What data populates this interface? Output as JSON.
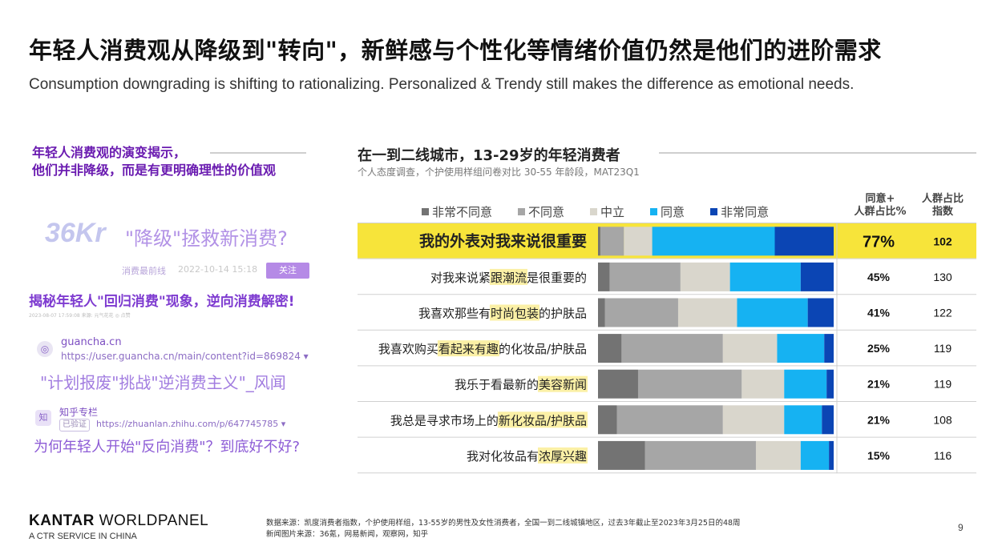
{
  "header": {
    "title": "年轻人消费观从降级到\"转向\"，新鲜感与个性化等情绪价值仍然是他们的进阶需求",
    "subtitle": "Consumption downgrading is shifting to rationalizing. Personalized & Trendy still makes the difference as emotional needs."
  },
  "left": {
    "insight_line1": "年轻人消费观的演变揭示，",
    "insight_line2": "他们并非降级，而是有更明确理性的价值观",
    "kr_logo": "36Kr",
    "kr_headline": "\"降级\"拯救新消费?",
    "kr_source": "消费最前线",
    "kr_time": "2022-10-14 15:18",
    "kr_follow": "关注",
    "headline_1": "揭秘年轻人\"回归消费\"现象，逆向消费解密!",
    "headline_1_meta": "2023-08-07 17:59:08   来源: 元气花花   ◎ 点赞",
    "gc_icon": "◎",
    "gc_site": "guancha.cn",
    "gc_url": "https://user.guancha.cn/main/content?id=869824 ▾",
    "headline_2": "\"计划报废\"挑战\"逆消费主义\"_风闻",
    "zh_icon": "知",
    "zh_site": "知乎专栏",
    "zh_verified": "已验证",
    "zh_url": "https://zhuanlan.zhihu.com/p/647745785 ▾",
    "headline_3": "为何年轻人开始\"反向消费\"？到底好不好?"
  },
  "chart_header": {
    "title": "在一到二线城市，13-29岁的年轻消费者",
    "subtitle": "个人态度调查，个护使用样组问卷对比 30-55 年龄段，MAT23Q1",
    "col1": "同意+人群占比%",
    "col1_line1": "同意+",
    "col1_line2": "人群占比%",
    "col2_line1": "人群占比",
    "col2_line2": "指数"
  },
  "legend": [
    {
      "label": "非常不同意",
      "color": "#737373"
    },
    {
      "label": "不同意",
      "color": "#a6a6a6"
    },
    {
      "label": "中立",
      "color": "#d9d6cc"
    },
    {
      "label": "同意",
      "color": "#16b2f2"
    },
    {
      "label": "非常同意",
      "color": "#0b45b4"
    }
  ],
  "chart_data": {
    "type": "bar",
    "stacked": true,
    "orientation": "horizontal",
    "title": "在一到二线城市，13-29岁的年轻消费者",
    "categories": [
      {
        "pre": "",
        "hl": "",
        "post": "我的外表对我来说很重要",
        "full": "我的外表对我来说很重要"
      },
      {
        "pre": "对我来说紧",
        "hl": "跟潮流",
        "post": "是很重要的",
        "full": "对我来说紧跟潮流是很重要的"
      },
      {
        "pre": "我喜欢那些有",
        "hl": "时尚包装",
        "post": "的护肤品",
        "full": "我喜欢那些有时尚包装的护肤品"
      },
      {
        "pre": "我喜欢购买",
        "hl": "看起来有趣",
        "post": "的化妆品/护肤品",
        "full": "我喜欢购买看起来有趣的化妆品/护肤品"
      },
      {
        "pre": "我乐于看最新的",
        "hl": "美容新闻",
        "post": "",
        "full": "我乐于看最新的美容新闻"
      },
      {
        "pre": "我总是寻求市场上的",
        "hl": "新化妆品/护肤品",
        "post": "",
        "full": "我总是寻求市场上的新化妆品/护肤品"
      },
      {
        "pre": "我对化妆品有",
        "hl": "浓厚兴趣",
        "post": "",
        "full": "我对化妆品有浓厚兴趣"
      }
    ],
    "series": [
      {
        "name": "非常不同意",
        "color": "#737373",
        "values": [
          1,
          5,
          3,
          10,
          17,
          8,
          20
        ]
      },
      {
        "name": "不同意",
        "color": "#a6a6a6",
        "values": [
          10,
          30,
          31,
          43,
          44,
          45,
          47
        ]
      },
      {
        "name": "中立",
        "color": "#d9d6cc",
        "values": [
          12,
          21,
          25,
          23,
          18,
          26,
          19
        ]
      },
      {
        "name": "同意",
        "color": "#16b2f2",
        "values": [
          52,
          30,
          30,
          20,
          18,
          16,
          12
        ]
      },
      {
        "name": "非常同意",
        "color": "#0b45b4",
        "values": [
          25,
          14,
          11,
          4,
          3,
          5,
          2
        ]
      }
    ],
    "agree_plus_pct": [
      "77%",
      "45%",
      "41%",
      "25%",
      "21%",
      "21%",
      "15%"
    ],
    "index": [
      "102",
      "130",
      "122",
      "119",
      "119",
      "108",
      "116"
    ],
    "highlight_row": 0,
    "xlim": [
      0,
      100
    ]
  },
  "footer": {
    "logo_bold": "KANTAR",
    "logo_rest": " WORLDPANEL",
    "tagline": "A CTR SERVICE IN CHINA",
    "note_line1": "数据来源：凯度消费者指数，个护使用样组，13-55岁的男性及女性消费者，全国一到二线城镇地区，过去3年截止至2023年3月25日的48周",
    "note_line2": "新闻图片来源：36氪，网易新闻，观察网，知乎",
    "page": "9"
  },
  "colors": {
    "highlight_fill": "#f7e43a",
    "text_highlight": "#fbf0a6",
    "insight_purple": "#6a1bb0"
  }
}
